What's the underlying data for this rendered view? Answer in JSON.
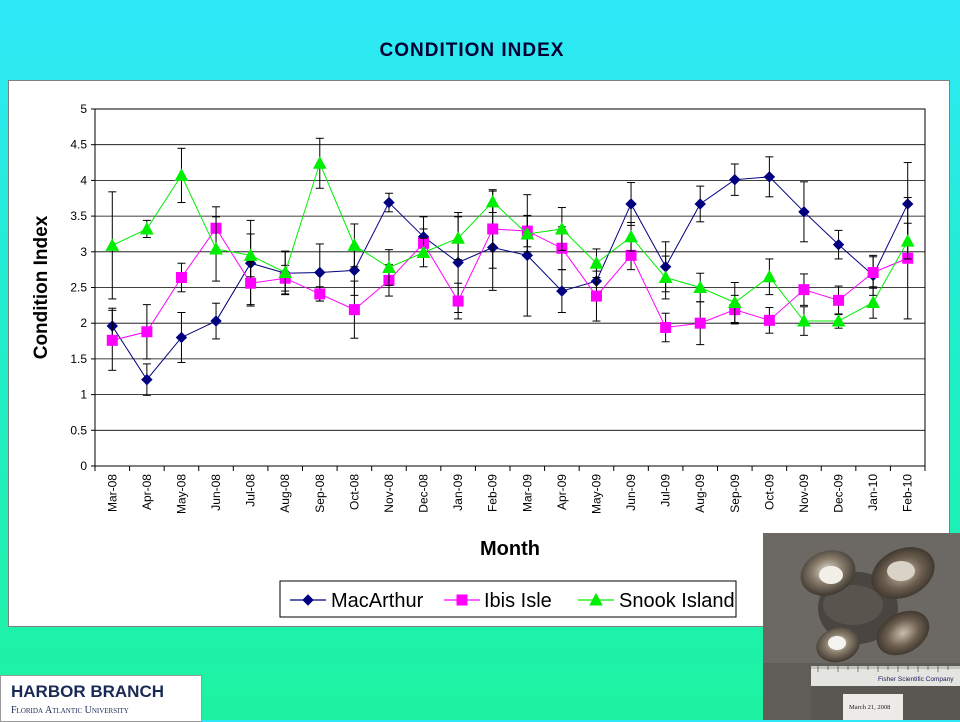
{
  "page": {
    "title": "CONDITION  INDEX",
    "logo_main": "HARBOR BRANCH",
    "logo_sub": "Florida Atlantic University"
  },
  "photo": {
    "ruler_text": "Fisher Scientific Company",
    "date_label": "March 21, 2008"
  },
  "chart_data": {
    "type": "line",
    "title": "",
    "xlabel": "Month",
    "ylabel": "Condition Index",
    "ylim": [
      0,
      5
    ],
    "ytick_step": 0.5,
    "ytick_labels": [
      "0",
      "0.5",
      "1",
      "1.5",
      "2",
      "2.5",
      "3",
      "3.5",
      "4",
      "4.5",
      "5"
    ],
    "grid": true,
    "legend": "bottom",
    "categories": [
      "Mar-08",
      "Apr-08",
      "May-08",
      "Jun-08",
      "Jul-08",
      "Aug-08",
      "Sep-08",
      "Oct-08",
      "Nov-08",
      "Dec-08",
      "Jan-09",
      "Feb-09",
      "Mar-09",
      "Apr-09",
      "May-09",
      "Jun-09",
      "Jul-09",
      "Aug-09",
      "Sep-09",
      "Oct-09",
      "Nov-09",
      "Dec-09",
      "Jan-10",
      "Feb-10"
    ],
    "series": [
      {
        "name": "MacArthur",
        "color": "#000080",
        "marker": "diamond",
        "values": [
          1.96,
          1.21,
          1.8,
          2.03,
          2.84,
          2.7,
          2.71,
          2.74,
          3.69,
          3.21,
          2.85,
          3.06,
          2.95,
          2.45,
          2.59,
          3.67,
          2.79,
          3.67,
          4.01,
          4.05,
          3.56,
          3.1,
          2.67,
          3.67
        ],
        "errors": [
          0.25,
          0.22,
          0.35,
          0.25,
          0.6,
          0.3,
          0.4,
          0.35,
          0.13,
          0.28,
          0.7,
          0.6,
          0.85,
          0.3,
          0.25,
          0.3,
          0.35,
          0.25,
          0.22,
          0.28,
          0.42,
          0.2,
          0.28,
          0.58
        ]
      },
      {
        "name": "Ibis Isle",
        "color": "#ff00ff",
        "marker": "square",
        "values": [
          1.76,
          1.88,
          2.64,
          3.33,
          2.56,
          2.63,
          2.41,
          2.19,
          2.6,
          3.12,
          2.31,
          3.32,
          3.29,
          3.05,
          2.38,
          2.95,
          1.94,
          2.0,
          2.19,
          2.04,
          2.47,
          2.32,
          2.71,
          2.91
        ],
        "errors": [
          0.42,
          0.38,
          0.2,
          0.3,
          0.3,
          0.18,
          0.1,
          0.4,
          0.22,
          0.2,
          0.25,
          0.55,
          0.22,
          0.3,
          0.35,
          0.2,
          0.2,
          0.3,
          0.2,
          0.18,
          0.22,
          0.2,
          0.22,
          0.85
        ]
      },
      {
        "name": "Snook Island",
        "color": "#00ee00",
        "marker": "triangle",
        "values": [
          3.09,
          3.32,
          4.07,
          3.04,
          2.95,
          2.71,
          4.24,
          3.09,
          2.78,
          2.99,
          3.19,
          3.7,
          3.25,
          3.32,
          2.84,
          3.21,
          2.64,
          2.5,
          2.29,
          2.65,
          2.03,
          2.03,
          2.29,
          3.15
        ],
        "errors": [
          0.75,
          0.12,
          0.38,
          0.45,
          0.3,
          0.3,
          0.35,
          0.3,
          0.25,
          0.2,
          0.3,
          0.15,
          0.25,
          0.3,
          0.2,
          0.2,
          0.3,
          0.2,
          0.28,
          0.25,
          0.2,
          0.1,
          0.22,
          0.25
        ]
      }
    ]
  }
}
